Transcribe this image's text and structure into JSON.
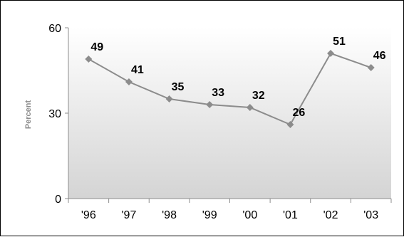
{
  "chart_data": {
    "type": "line",
    "title": "",
    "xlabel": "",
    "ylabel": "Percent",
    "categories": [
      "'96",
      "'97",
      "'98",
      "'99",
      "'00",
      "'01",
      "'02",
      "'03"
    ],
    "series": [
      {
        "values": [
          49,
          41,
          35,
          33,
          32,
          26,
          51,
          46
        ]
      }
    ],
    "data_labels": [
      "49",
      "41",
      "35",
      "33",
      "32",
      "26",
      "51",
      "46"
    ],
    "yticks": [
      0,
      30,
      60
    ],
    "ytick_labels": [
      "0",
      "30",
      "60"
    ],
    "ylim": [
      0,
      60
    ],
    "grid": false,
    "legend": "none",
    "colors": {
      "line": "#8c8c8c",
      "marker": "#8c8c8c",
      "plot_gradient_top": "#ffffff",
      "plot_gradient_bottom": "#d4d4d4",
      "axis": "#8c8c8c",
      "text": "#000000"
    }
  }
}
